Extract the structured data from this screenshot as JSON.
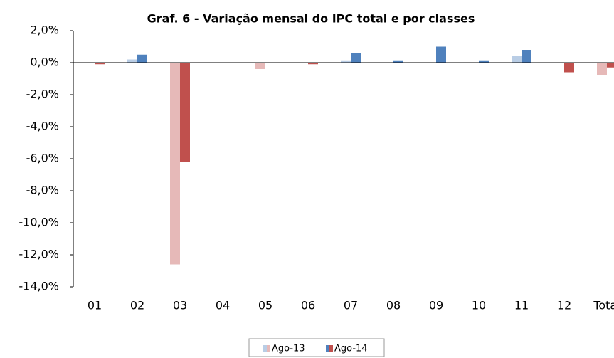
{
  "chart_data": {
    "type": "bar",
    "title": "Graf. 6 - Variação mensal do IPC total e por classes",
    "categories": [
      "01",
      "02",
      "03",
      "04",
      "05",
      "06",
      "07",
      "08",
      "09",
      "10",
      "11",
      "12",
      "Total"
    ],
    "series": [
      {
        "name": "Ago-13",
        "color": "#b9cde5",
        "negative_color": "#e6b9b8",
        "values": [
          0,
          0.2,
          -12.6,
          0,
          -0.4,
          0,
          0.1,
          0,
          0,
          0,
          0.4,
          0,
          -0.8
        ]
      },
      {
        "name": "Ago-14",
        "color": "#4f81bd",
        "negative_color": "#c0504d",
        "values": [
          -0.1,
          0.5,
          -6.2,
          0,
          0,
          -0.1,
          0.6,
          0.1,
          1.0,
          0.1,
          0.8,
          -0.6,
          -0.3
        ]
      }
    ],
    "ylim": [
      -14,
      2
    ],
    "yticks": [
      {
        "value": -14,
        "label": "-14,0%"
      },
      {
        "value": -12,
        "label": "-12,0%"
      },
      {
        "value": -10,
        "label": "-10,0%"
      },
      {
        "value": -8,
        "label": "-8,0%"
      },
      {
        "value": -6,
        "label": "-6,0%"
      },
      {
        "value": -4,
        "label": "-4,0%"
      },
      {
        "value": -2,
        "label": "-2,0%"
      },
      {
        "value": 0,
        "label": "0,0%"
      },
      {
        "value": 2,
        "label": "2,0%"
      }
    ],
    "grid": false,
    "legend": "bottom"
  }
}
